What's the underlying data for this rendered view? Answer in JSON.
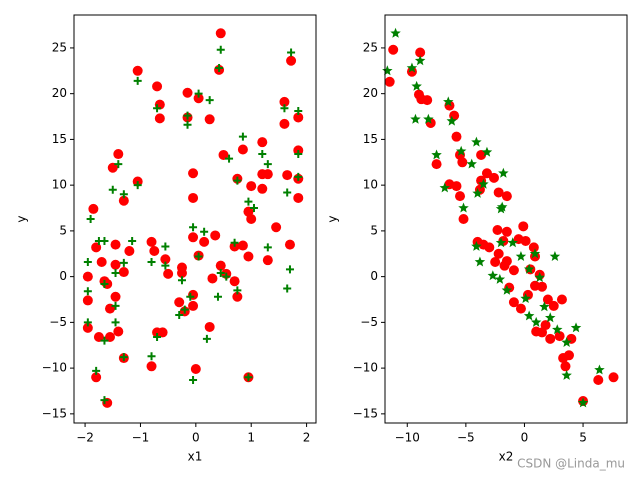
{
  "chart_data": [
    {
      "type": "scatter",
      "xlabel": "x1",
      "ylabel": "y",
      "xlim": [
        -2.2,
        2.17
      ],
      "ylim": [
        -16.0,
        28.6
      ],
      "xticks": [
        {
          "value": -2,
          "label": "−2"
        },
        {
          "value": -1,
          "label": "−1"
        },
        0,
        1,
        2
      ],
      "yticks": [
        {
          "value": -15,
          "label": "−15"
        },
        {
          "value": -10,
          "label": "−10"
        },
        {
          "value": -5,
          "label": "−5"
        },
        0,
        5,
        10,
        15,
        20,
        25
      ],
      "series": [
        {
          "color": "#ff0000",
          "marker": "o",
          "x": [
            0.45,
            0.42,
            -1.05,
            -0.7,
            -0.15,
            0.05,
            -0.65,
            -0.65,
            -0.15,
            0.25,
            1.72,
            1.6,
            1.6,
            1.85,
            1.85,
            0.85,
            0.5,
            1.2,
            -1.4,
            -1.5,
            -0.05,
            1.2,
            1.0,
            1.2,
            1.3,
            1.65,
            1.85,
            0.75,
            -1.05,
            -1.3,
            1.85,
            -0.05,
            -1.85,
            0.95,
            1.0,
            1.45,
            -0.05,
            0.35,
            -1.8,
            -1.45,
            -1.2,
            -0.8,
            -0.75,
            0.15,
            0.7,
            0.85,
            -1.7,
            -0.55,
            0.05,
            -0.25,
            -1.45,
            -1.3,
            -1.95,
            -1.65,
            -0.5,
            -0.25,
            0.3,
            0.45,
            0.55,
            0.7,
            0.95,
            1.3,
            1.7,
            -1.6,
            -1.45,
            -1.95,
            -0.3,
            -0.05,
            -0.05,
            0.25,
            0.75,
            -1.55,
            -1.4,
            -1.55,
            -1.95,
            -1.75,
            -0.7,
            -0.6,
            -0.2,
            -1.3,
            -0.8,
            0.0,
            -1.8,
            -1.6,
            0.95
          ],
          "values": [
            26.6,
            22.6,
            22.5,
            20.8,
            20.1,
            19.5,
            18.8,
            17.3,
            17.4,
            17.2,
            23.6,
            19.1,
            16.7,
            17.4,
            13.8,
            13.9,
            13.3,
            14.7,
            13.4,
            11.9,
            11.3,
            11.2,
            9.9,
            9.6,
            11.2,
            11.1,
            10.7,
            10.7,
            10.4,
            8.3,
            8.6,
            8.6,
            7.4,
            7.1,
            6.3,
            5.4,
            4.3,
            4.5,
            3.2,
            3.5,
            2.8,
            3.8,
            2.8,
            3.8,
            3.3,
            3.4,
            1.6,
            1.9,
            2.3,
            1.0,
            1.3,
            0.5,
            0.0,
            -0.5,
            0.3,
            0.4,
            -0.2,
            1.2,
            0.3,
            -0.5,
            2.2,
            1.8,
            3.5,
            -0.8,
            -2.2,
            -2.6,
            -2.8,
            -2.0,
            -3.2,
            -5.5,
            -2.2,
            -3.5,
            -6.0,
            -6.6,
            -5.6,
            -6.6,
            -6.1,
            -6.1,
            -3.8,
            -8.9,
            -9.8,
            -10.1,
            -11.0,
            -13.8,
            -11.0
          ]
        },
        {
          "color": "#008000",
          "marker": "+",
          "x": [
            0.45,
            0.42,
            -1.05,
            -0.7,
            -0.15,
            0.05,
            0.25,
            -0.15,
            1.72,
            1.6,
            1.85,
            1.85,
            0.85,
            0.6,
            1.2,
            1.3,
            -1.4,
            -1.5,
            -1.3,
            -1.05,
            1.65,
            1.85,
            0.75,
            0.95,
            1.05,
            -1.9,
            -0.05,
            0.15,
            -1.75,
            -1.65,
            -1.15,
            -0.55,
            0.7,
            1.3,
            -0.8,
            -0.55,
            -0.25,
            -1.95,
            -1.45,
            -1.3,
            0.45,
            0.55,
            0.05,
            1.7,
            1.65,
            -1.65,
            -1.45,
            -1.95,
            -0.3,
            0.4,
            0.75,
            0.2,
            -0.05,
            -1.95,
            -1.45,
            -1.65,
            -0.7,
            -0.2,
            -0.8,
            -1.8,
            -1.65,
            0.95,
            -1.3,
            -0.1
          ],
          "values": [
            24.8,
            22.8,
            21.4,
            18.4,
            17.6,
            20.0,
            19.3,
            16.6,
            24.5,
            18.4,
            18.1,
            13.4,
            15.3,
            12.9,
            13.4,
            12.3,
            12.3,
            9.5,
            9.0,
            10.0,
            9.2,
            10.9,
            10.5,
            8.2,
            7.5,
            6.3,
            5.4,
            4.9,
            3.9,
            3.9,
            3.9,
            3.3,
            3.7,
            3.2,
            1.6,
            1.2,
            -0.4,
            1.6,
            0.4,
            1.5,
            0.4,
            0.0,
            2.2,
            0.8,
            -1.3,
            -0.8,
            -3.2,
            -1.6,
            -4.2,
            -2.2,
            -1.5,
            -6.8,
            -11.3,
            -5.0,
            -5.0,
            -7.0,
            -6.6,
            -3.6,
            -8.7,
            -10.3,
            -13.5,
            -11.0,
            -8.8,
            -2.2
          ]
        }
      ]
    },
    {
      "type": "scatter",
      "xlabel": "x2",
      "ylabel": "y",
      "xlim": [
        -11.9,
        8.75
      ],
      "ylim": [
        -16.0,
        28.6
      ],
      "xticks": [
        {
          "value": -10,
          "label": "−10"
        },
        {
          "value": -5,
          "label": "−5"
        },
        0,
        5
      ],
      "yticks": [
        {
          "value": -15,
          "label": "−15"
        },
        {
          "value": -10,
          "label": "−10"
        },
        {
          "value": -5,
          "label": "−5"
        },
        0,
        5,
        10,
        15,
        20,
        25
      ],
      "series": [
        {
          "color": "#ff0000",
          "marker": "o",
          "x": [
            -11.2,
            -11.5,
            -9.6,
            -8.9,
            -9.0,
            -8.8,
            -8.3,
            -8.0,
            -7.5,
            -6.4,
            -6.0,
            -5.8,
            -5.5,
            -5.3,
            -3.7,
            -6.4,
            -5.8,
            -5.5,
            -5.2,
            -3.7,
            -3.2,
            -2.6,
            -3.8,
            -2.2,
            -1.5,
            -4.0,
            -3.5,
            -3.0,
            -2.3,
            -1.5,
            -1.8,
            -2.2,
            -1.5,
            -2.5,
            -1.7,
            -0.9,
            -0.1,
            -0.5,
            0.1,
            0.8,
            0.9,
            0.5,
            1.3,
            0.9,
            -1.3,
            -0.9,
            0.3,
            1.5,
            2.0,
            2.5,
            3.2,
            1.8,
            1.5,
            2.2,
            1.0,
            3.0,
            4.0,
            3.3,
            3.8,
            3.5,
            5.0,
            6.3,
            7.6,
            -0.3
          ],
          "values": [
            24.8,
            21.3,
            22.4,
            24.5,
            19.9,
            19.4,
            19.3,
            16.8,
            12.3,
            18.7,
            17.6,
            15.3,
            13.3,
            12.5,
            13.3,
            10.1,
            9.9,
            8.8,
            6.3,
            10.5,
            11.3,
            10.8,
            9.5,
            9.2,
            8.8,
            3.8,
            3.5,
            3.2,
            5.1,
            4.9,
            3.9,
            2.5,
            1.7,
            1.6,
            1.2,
            0.7,
            5.5,
            4.1,
            3.9,
            3.2,
            2.2,
            0.8,
            0.2,
            -1.0,
            -1.2,
            -2.8,
            -2.0,
            -1.1,
            -2.5,
            -3.2,
            -2.5,
            -5.3,
            -6.1,
            -6.8,
            -6.0,
            -6.5,
            -6.8,
            -8.9,
            -8.6,
            -9.8,
            -13.6,
            -11.3,
            -11.0,
            -3.5
          ]
        },
        {
          "color": "#008000",
          "marker": "*",
          "x": [
            -11.0,
            -11.7,
            -9.6,
            -8.9,
            -9.2,
            -9.3,
            -8.2,
            -7.5,
            -6.5,
            -6.2,
            -5.4,
            -4.5,
            -4.1,
            -3.2,
            -6.8,
            -5.2,
            -4.0,
            -3.5,
            -1.8,
            -2.0,
            -4.1,
            -3.8,
            -2.7,
            -2.1,
            -1.5,
            -2.0,
            -1.0,
            -0.3,
            0.4,
            0.9,
            1.3,
            0.1,
            0.4,
            1.7,
            2.6,
            2.2,
            2.8,
            3.6,
            4.4,
            3.6,
            5.0,
            6.4,
            1.0,
            -1.9
          ],
          "values": [
            26.6,
            22.5,
            22.8,
            23.6,
            20.8,
            17.2,
            17.2,
            13.3,
            19.1,
            17.0,
            13.7,
            12.3,
            14.7,
            13.6,
            9.7,
            7.5,
            9.1,
            10.1,
            11.3,
            7.4,
            3.3,
            1.6,
            0.1,
            -0.3,
            -1.5,
            3.7,
            3.7,
            2.2,
            0.8,
            2.5,
            -0.1,
            -2.4,
            -4.3,
            -3.3,
            2.2,
            -4.5,
            -5.8,
            -7.2,
            -5.6,
            -10.8,
            -13.8,
            -10.2,
            -5.0,
            7.6
          ]
        }
      ]
    }
  ],
  "watermark": "CSDN @Linda_mu"
}
